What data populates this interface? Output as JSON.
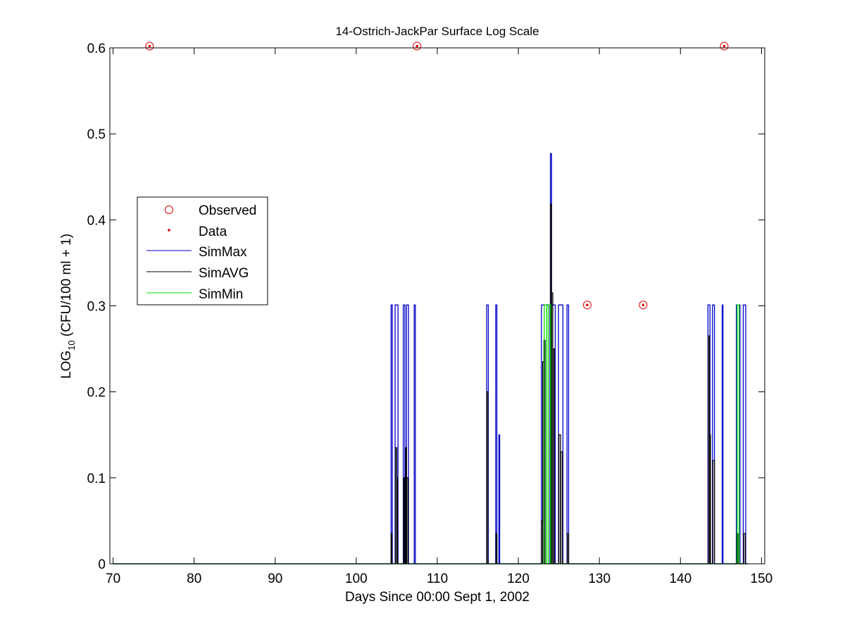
{
  "chart_data": {
    "type": "line",
    "title": "14-Ostrich-JackPar Surface Log Scale",
    "xlabel": "Days Since 00:00 Sept 1, 2002",
    "ylabel": {
      "main": "LOG",
      "sub": "10",
      "rest": " (CFU/100 ml + 1)"
    },
    "xlim": [
      69.6,
      150.4
    ],
    "ylim": [
      0,
      0.6
    ],
    "xticks": [
      70,
      80,
      90,
      100,
      110,
      120,
      130,
      140,
      150
    ],
    "yticks": [
      0,
      0.1,
      0.2,
      0.3,
      0.4,
      0.5,
      0.6
    ],
    "ytick_labels": [
      "0",
      "0.1",
      "0.2",
      "0.3",
      "0.4",
      "0.5",
      "0.6"
    ],
    "grid": false,
    "legend_position": "left-middle",
    "legend": [
      "Observed",
      "Data",
      "SimMax",
      "SimAVG",
      "SimMin"
    ],
    "colors": {
      "observed": "#e00000",
      "data": "#e00000",
      "simmax": "#0000c8",
      "simavg": "#000000",
      "simmin": "#00dd00"
    },
    "observed": {
      "x": [
        74.5,
        107.5,
        145.4,
        128.5,
        135.4
      ],
      "y": [
        0.602,
        0.602,
        0.602,
        0.301,
        0.301
      ]
    },
    "data": {
      "x": [
        74.5,
        107.5,
        145.4,
        128.5,
        135.4
      ],
      "y": [
        0.602,
        0.602,
        0.602,
        0.301,
        0.301
      ]
    },
    "series": [
      {
        "name": "SimMax",
        "color": "#0000c8",
        "pulses": [
          [
            104.3,
            104.45,
            0.301
          ],
          [
            104.8,
            105.15,
            0.301
          ],
          [
            105.8,
            106.0,
            0.301
          ],
          [
            106.2,
            106.45,
            0.301
          ],
          [
            107.15,
            107.3,
            0.301
          ],
          [
            116.1,
            116.3,
            0.301
          ],
          [
            117.2,
            117.35,
            0.301
          ],
          [
            117.6,
            117.7,
            0.15
          ],
          [
            122.85,
            123.9,
            0.301
          ],
          [
            123.95,
            124.1,
            0.477
          ],
          [
            124.1,
            124.55,
            0.301
          ],
          [
            124.95,
            125.5,
            0.301
          ],
          [
            126.0,
            126.2,
            0.301
          ],
          [
            143.4,
            143.65,
            0.301
          ],
          [
            143.95,
            144.2,
            0.301
          ],
          [
            145.15,
            145.25,
            0.301
          ],
          [
            146.9,
            147.35,
            0.301
          ],
          [
            147.75,
            148.05,
            0.301
          ]
        ]
      },
      {
        "name": "SimAVG",
        "color": "#000000",
        "pulses": [
          [
            104.3,
            104.4,
            0.035
          ],
          [
            104.85,
            105.0,
            0.135
          ],
          [
            105.0,
            105.1,
            0.1
          ],
          [
            105.85,
            105.95,
            0.1
          ],
          [
            106.1,
            106.2,
            0.135
          ],
          [
            106.25,
            106.4,
            0.1
          ],
          [
            116.1,
            116.25,
            0.2
          ],
          [
            117.25,
            117.35,
            0.035
          ],
          [
            122.85,
            123.0,
            0.05
          ],
          [
            123.0,
            123.15,
            0.235
          ],
          [
            123.15,
            123.3,
            0.26
          ],
          [
            123.95,
            124.1,
            0.418
          ],
          [
            124.1,
            124.25,
            0.315
          ],
          [
            124.3,
            124.45,
            0.25
          ],
          [
            125.0,
            125.2,
            0.15
          ],
          [
            125.25,
            125.45,
            0.13
          ],
          [
            126.05,
            126.2,
            0.035
          ],
          [
            143.45,
            143.6,
            0.265
          ],
          [
            143.6,
            143.7,
            0.15
          ],
          [
            144.0,
            144.2,
            0.12
          ],
          [
            146.95,
            147.1,
            0.035
          ],
          [
            147.8,
            148.0,
            0.035
          ]
        ]
      },
      {
        "name": "SimMin",
        "color": "#00dd00",
        "pulses": [
          [
            123.2,
            123.5,
            0.301
          ],
          [
            123.7,
            124.0,
            0.301
          ],
          [
            147.0,
            147.25,
            0.301
          ]
        ]
      }
    ]
  }
}
